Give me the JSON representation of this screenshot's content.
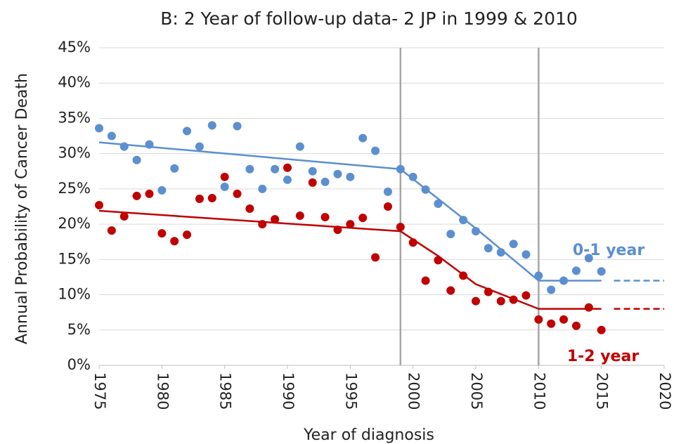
{
  "chart_data": {
    "type": "scatter",
    "title": "B: 2 Year of follow-up data- 2 JP in 1999 & 2010",
    "x_label": "Year of diagnosis",
    "y_label": "Annual Probability of Cancer Death",
    "xlim": [
      1975,
      2020
    ],
    "xticks": [
      1975,
      1980,
      1985,
      1990,
      1995,
      2000,
      2005,
      2010,
      2015,
      2020
    ],
    "ylim": [
      0,
      45
    ],
    "yticks": [
      {
        "value": 0,
        "label": "0%"
      },
      {
        "value": 5,
        "label": "5%"
      },
      {
        "value": 10,
        "label": "10%"
      },
      {
        "value": 15,
        "label": "15%"
      },
      {
        "value": 20,
        "label": "20%"
      },
      {
        "value": 25,
        "label": "25%"
      },
      {
        "value": 30,
        "label": "30%"
      },
      {
        "value": 35,
        "label": "35%"
      },
      {
        "value": 40,
        "label": "40%"
      },
      {
        "value": 45,
        "label": "45%"
      }
    ],
    "grid": true,
    "vlines": [
      1999,
      2010
    ],
    "vline_color": "#a6a6a6",
    "series": [
      {
        "name": "0-1 year",
        "color": "#5b8fd0",
        "x": [
          1975,
          1976,
          1977,
          1978,
          1979,
          1980,
          1981,
          1982,
          1983,
          1984,
          1985,
          1986,
          1987,
          1988,
          1989,
          1990,
          1991,
          1992,
          1993,
          1994,
          1995,
          1996,
          1997,
          1998,
          1999,
          2000,
          2001,
          2002,
          2003,
          2004,
          2005,
          2006,
          2007,
          2008,
          2009,
          2010,
          2011,
          2012,
          2013,
          2014,
          2015
        ],
        "values": [
          33.6,
          32.5,
          31.0,
          29.1,
          31.3,
          24.8,
          27.9,
          33.2,
          31.0,
          34.0,
          25.3,
          33.9,
          27.8,
          25.0,
          27.8,
          26.3,
          31.0,
          27.5,
          26.0,
          27.1,
          26.7,
          32.2,
          30.4,
          24.6,
          27.8,
          26.7,
          24.9,
          22.9,
          18.6,
          20.6,
          19.0,
          16.6,
          16.0,
          17.2,
          15.7,
          12.7,
          10.7,
          12.0,
          13.4,
          15.2,
          13.3
        ],
        "fit": {
          "x": [
            1975,
            1999,
            2005,
            2010,
            2015
          ],
          "values": [
            31.6,
            27.8,
            19.4,
            12.0,
            12.0
          ]
        },
        "fit_extension": {
          "x": [
            2016,
            2020
          ],
          "values": [
            12.0,
            12.0
          ]
        }
      },
      {
        "name": "1-2 year",
        "color": "#c00000",
        "x": [
          1975,
          1976,
          1977,
          1978,
          1979,
          1980,
          1981,
          1982,
          1983,
          1984,
          1985,
          1986,
          1987,
          1988,
          1989,
          1990,
          1991,
          1992,
          1993,
          1994,
          1995,
          1996,
          1997,
          1998,
          1999,
          2000,
          2001,
          2002,
          2003,
          2004,
          2005,
          2006,
          2007,
          2008,
          2009,
          2010,
          2011,
          2012,
          2013,
          2014,
          2015
        ],
        "values": [
          22.7,
          19.1,
          21.1,
          24.0,
          24.3,
          18.7,
          17.6,
          18.5,
          23.6,
          23.7,
          26.7,
          24.3,
          22.2,
          20.0,
          20.7,
          28.0,
          21.2,
          25.9,
          21.0,
          19.2,
          20.0,
          20.9,
          15.3,
          22.5,
          19.6,
          17.4,
          12.0,
          14.9,
          10.6,
          12.7,
          9.1,
          10.4,
          9.1,
          9.3,
          9.9,
          6.5,
          5.9,
          6.5,
          5.6,
          8.2,
          5.0
        ],
        "fit": {
          "x": [
            1975,
            1999,
            2002,
            2005,
            2010,
            2015
          ],
          "values": [
            21.9,
            19.0,
            15.5,
            11.5,
            8.0,
            8.0
          ]
        },
        "fit_extension": {
          "x": [
            2016,
            2020
          ],
          "values": [
            8.0,
            8.0
          ]
        }
      }
    ]
  }
}
